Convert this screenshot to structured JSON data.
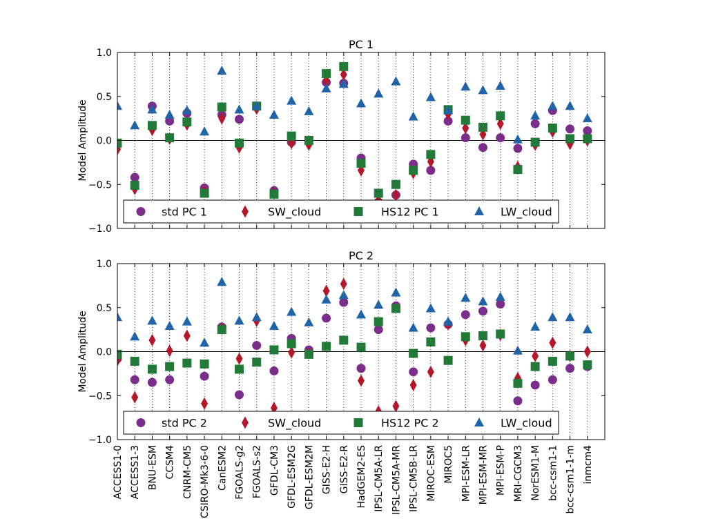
{
  "colors": {
    "std": "#7b2d8b",
    "sw": "#b5172a",
    "hs12": "#217a38",
    "lw": "#1f63a8"
  },
  "chart_data": [
    {
      "type": "scatter",
      "title": "PC 1",
      "ylabel": "Model Amplitude",
      "xlabel": "",
      "ylim": [
        -1.0,
        1.0
      ],
      "yticks": [
        1.0,
        0.5,
        0.0,
        -0.5,
        -1.0
      ],
      "ytick_labels": [
        "1.0",
        "0.5",
        "0.0",
        "−0.5",
        "−1.0"
      ],
      "grid": "vertical dotted",
      "legend_placement": "bottom",
      "categories": [
        "ACCESS1-0",
        "ACCESS1-3",
        "BNU-ESM",
        "CCSM4",
        "CNRM-CM5",
        "CSIRO-Mk3-6-0",
        "CanESM2",
        "FGOALS-g2",
        "FGOALS-s2",
        "GFDL-CM3",
        "GFDL-ESM2G",
        "GFDL-ESM2M",
        "GISS-E2-H",
        "GISS-E2-R",
        "HadGEM2-ES",
        "IPSL-CM5A-LR",
        "IPSL-CM5A-MR",
        "IPSL-CM5B-LR",
        "MIROC-ESM",
        "MIROC5",
        "MPI-ESM-LR",
        "MPI-ESM-MR",
        "MPI-ESM-P",
        "MRI-CGCM3",
        "NorESM1-M",
        "bcc-csm1-1",
        "bcc-csm1-1-m",
        "inmcm4"
      ],
      "series": [
        {
          "name": "std PC 1",
          "marker": "circle",
          "color_key": "std",
          "values": [
            -0.03,
            -0.42,
            0.39,
            0.22,
            0.31,
            -0.54,
            0.29,
            0.24,
            0.39,
            -0.57,
            -0.02,
            -0.01,
            0.66,
            0.65,
            -0.2,
            -0.7,
            -0.62,
            -0.27,
            -0.34,
            0.22,
            0.03,
            -0.08,
            0.03,
            -0.09,
            0.19,
            0.34,
            0.13,
            0.11
          ]
        },
        {
          "name": "SW_cloud",
          "marker": "diamond",
          "color_key": "sw",
          "values": [
            -0.1,
            -0.55,
            0.12,
            0.02,
            0.18,
            -0.58,
            0.25,
            -0.08,
            0.36,
            -0.6,
            -0.03,
            -0.05,
            0.68,
            0.75,
            -0.34,
            -0.68,
            -0.62,
            -0.37,
            -0.24,
            0.3,
            0.14,
            0.07,
            0.19,
            -0.3,
            -0.05,
            0.1,
            -0.04,
            0.0
          ]
        },
        {
          "name": "HS12 PC 1",
          "marker": "square",
          "color_key": "hs12",
          "values": [
            -0.03,
            -0.51,
            0.17,
            0.03,
            0.21,
            -0.6,
            0.38,
            -0.03,
            0.39,
            -0.61,
            0.05,
            0.0,
            0.76,
            0.84,
            -0.26,
            -0.6,
            -0.5,
            -0.34,
            -0.16,
            0.35,
            0.23,
            0.15,
            0.28,
            -0.33,
            -0.02,
            0.14,
            0.02,
            0.02
          ]
        },
        {
          "name": "LW_cloud",
          "marker": "triangle",
          "color_key": "lw",
          "values": [
            0.39,
            0.17,
            0.35,
            0.29,
            0.34,
            0.1,
            0.79,
            0.35,
            0.39,
            0.29,
            0.45,
            0.33,
            0.59,
            0.64,
            0.42,
            0.53,
            0.67,
            0.27,
            0.49,
            0.34,
            0.61,
            0.57,
            0.62,
            0.01,
            0.28,
            0.39,
            0.39,
            0.25
          ]
        }
      ]
    },
    {
      "type": "scatter",
      "title": "PC 2",
      "ylabel": "Model Amplitude",
      "xlabel": "",
      "ylim": [
        -1.0,
        1.0
      ],
      "yticks": [
        1.0,
        0.5,
        0.0,
        -0.5,
        -1.0
      ],
      "ytick_labels": [
        "1.0",
        "0.5",
        "0.0",
        "−0.5",
        "−1.0"
      ],
      "grid": "vertical dotted",
      "legend_placement": "bottom",
      "categories": [
        "ACCESS1-0",
        "ACCESS1-3",
        "BNU-ESM",
        "CCSM4",
        "CNRM-CM5",
        "CSIRO-Mk3-6-0",
        "CanESM2",
        "FGOALS-g2",
        "FGOALS-s2",
        "GFDL-CM3",
        "GFDL-ESM2G",
        "GFDL-ESM2M",
        "GISS-E2-H",
        "GISS-E2-R",
        "HadGEM2-ES",
        "IPSL-CM5A-LR",
        "IPSL-CM5A-MR",
        "IPSL-CM5B-LR",
        "MIROC-ESM",
        "MIROC5",
        "MPI-ESM-LR",
        "MPI-ESM-MR",
        "MPI-ESM-P",
        "MRI-CGCM3",
        "NorESM1-M",
        "bcc-csm1-1",
        "bcc-csm1-1-m",
        "inmcm4"
      ],
      "series": [
        {
          "name": "std PC 2",
          "marker": "circle",
          "color_key": "std",
          "values": [
            -0.08,
            -0.32,
            -0.35,
            -0.32,
            -0.13,
            -0.28,
            0.28,
            -0.49,
            0.07,
            -0.22,
            0.15,
            0.02,
            0.38,
            0.56,
            -0.19,
            0.25,
            0.52,
            -0.23,
            0.27,
            0.31,
            0.42,
            0.46,
            0.54,
            -0.56,
            -0.38,
            -0.32,
            -0.19,
            -0.17
          ]
        },
        {
          "name": "SW_cloud",
          "marker": "diamond",
          "color_key": "sw",
          "values": [
            -0.1,
            -0.52,
            0.13,
            0.01,
            0.18,
            -0.59,
            0.26,
            -0.08,
            0.35,
            -0.64,
            -0.01,
            -0.02,
            0.69,
            0.77,
            -0.33,
            -0.68,
            -0.62,
            -0.38,
            -0.23,
            0.31,
            0.13,
            0.07,
            0.19,
            -0.3,
            -0.05,
            0.1,
            -0.05,
            0.0
          ]
        },
        {
          "name": "HS12 PC 2",
          "marker": "square",
          "color_key": "hs12",
          "values": [
            -0.03,
            -0.11,
            -0.2,
            -0.17,
            -0.13,
            -0.14,
            0.25,
            -0.2,
            -0.12,
            0.02,
            0.09,
            -0.03,
            0.06,
            0.13,
            0.05,
            0.34,
            0.49,
            -0.02,
            0.11,
            -0.1,
            0.17,
            0.18,
            0.2,
            -0.36,
            -0.17,
            -0.11,
            -0.05,
            -0.15
          ]
        },
        {
          "name": "LW_cloud",
          "marker": "triangle",
          "color_key": "lw",
          "values": [
            0.39,
            0.17,
            0.35,
            0.29,
            0.34,
            0.1,
            0.79,
            0.35,
            0.39,
            0.29,
            0.45,
            0.33,
            0.59,
            0.64,
            0.42,
            0.53,
            0.67,
            0.27,
            0.49,
            0.34,
            0.61,
            0.57,
            0.62,
            0.01,
            0.28,
            0.39,
            0.39,
            0.25
          ]
        }
      ]
    }
  ]
}
